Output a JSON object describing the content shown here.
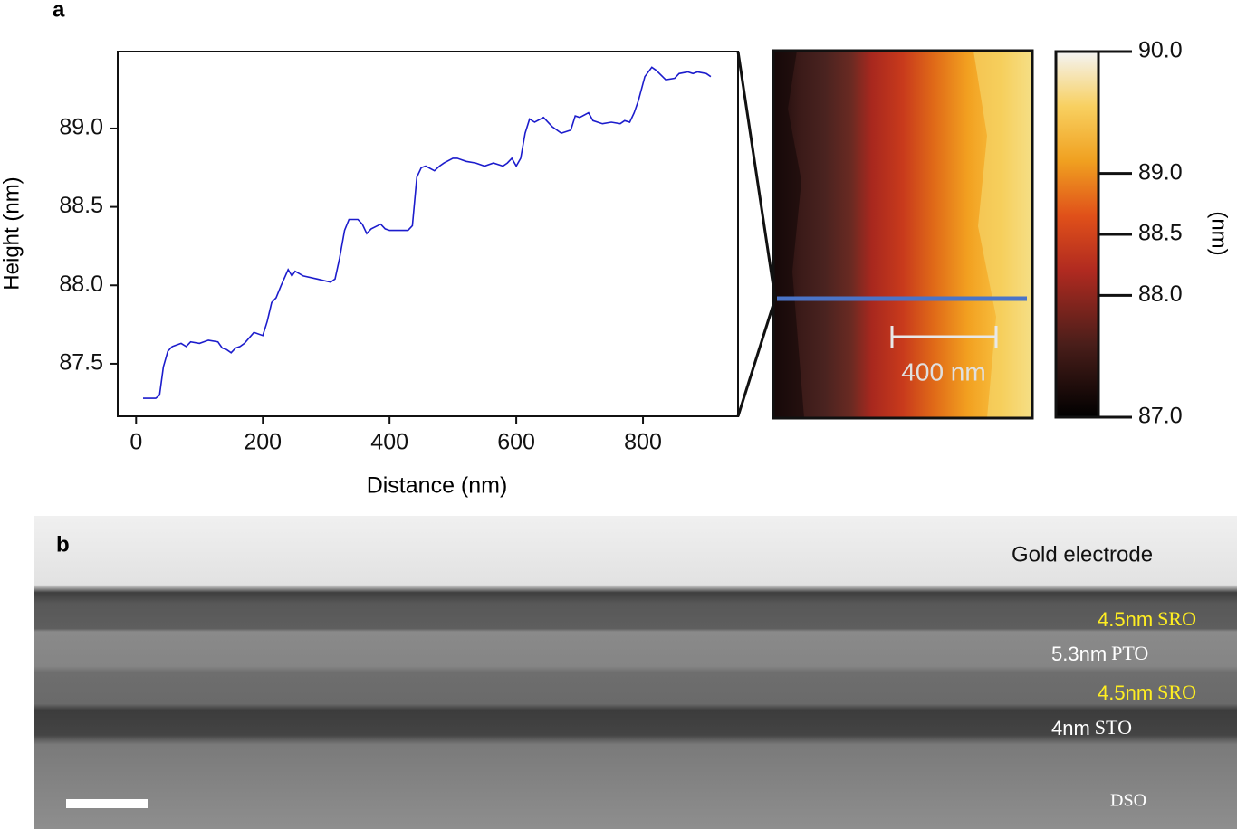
{
  "panel_labels": [
    "a",
    "b"
  ],
  "chart_data": {
    "type": "line",
    "xlabel": "Distance (nm)",
    "ylabel": "Height (nm)",
    "color": "#1c1ccc",
    "x": [
      11,
      31,
      37,
      43,
      50,
      57,
      71,
      79,
      86,
      100,
      114,
      129,
      136,
      143,
      150,
      157,
      164,
      171,
      186,
      200,
      207,
      214,
      221,
      229,
      240,
      246,
      251,
      264,
      286,
      307,
      314,
      321,
      329,
      336,
      350,
      357,
      364,
      371,
      386,
      393,
      400,
      414,
      429,
      436,
      443,
      450,
      457,
      471,
      479,
      486,
      500,
      507,
      514,
      521,
      536,
      550,
      564,
      579,
      586,
      593,
      600,
      607,
      614,
      621,
      629,
      643,
      657,
      671,
      686,
      693,
      700,
      714,
      721,
      736,
      750,
      764,
      771,
      779,
      786,
      793,
      803,
      814,
      821,
      836,
      850,
      857,
      871,
      879,
      886,
      900,
      907
    ],
    "values": [
      87.28,
      87.28,
      87.3,
      87.48,
      87.58,
      87.61,
      87.63,
      87.61,
      87.64,
      87.63,
      87.65,
      87.64,
      87.6,
      87.59,
      87.57,
      87.6,
      87.61,
      87.63,
      87.7,
      87.68,
      87.77,
      87.89,
      87.92,
      88.0,
      88.1,
      88.06,
      88.09,
      88.06,
      88.04,
      88.02,
      88.04,
      88.17,
      88.35,
      88.42,
      88.42,
      88.39,
      88.33,
      88.36,
      88.39,
      88.36,
      88.35,
      88.35,
      88.35,
      88.38,
      88.69,
      88.75,
      88.76,
      88.73,
      88.76,
      88.78,
      88.81,
      88.81,
      88.8,
      88.79,
      88.78,
      88.76,
      88.78,
      88.76,
      88.78,
      88.81,
      88.76,
      88.81,
      88.97,
      89.06,
      89.04,
      89.07,
      89.01,
      88.97,
      88.99,
      89.08,
      89.07,
      89.1,
      89.05,
      89.03,
      89.04,
      89.03,
      89.05,
      89.04,
      89.1,
      89.18,
      89.33,
      89.39,
      89.37,
      89.31,
      89.32,
      89.35,
      89.36,
      89.35,
      89.36,
      89.35,
      89.33
    ],
    "xlim": [
      -29,
      950
    ],
    "ylim": [
      87.165,
      89.49
    ],
    "xticks": [
      0,
      200,
      400,
      600,
      800
    ],
    "yticks": [
      {
        "value": 87.5,
        "label": "87.5"
      },
      {
        "value": 88.0,
        "label": "88.0"
      },
      {
        "value": 88.5,
        "label": "88.5"
      },
      {
        "value": 89.0,
        "label": "89.0"
      }
    ]
  },
  "afm_image": {
    "scale_bar": "400 nm",
    "colorbar": {
      "label": "(nm)",
      "lim": [
        87,
        90
      ],
      "ticks": [
        {
          "value": 87,
          "label": "87.0"
        },
        {
          "value": 88,
          "label": "88.0"
        },
        {
          "value": 88.5,
          "label": "88.5"
        },
        {
          "value": 89,
          "label": "89.0"
        },
        {
          "value": 90,
          "label": "90.0"
        }
      ]
    }
  },
  "tem_image": {
    "electrode": "Gold electrode",
    "layers": [
      {
        "thickness": "4.5nm",
        "material": "SRO"
      },
      {
        "thickness": "5.3nm",
        "material": "PTO"
      },
      {
        "thickness": "4.5nm",
        "material": "SRO"
      },
      {
        "thickness": "4nm",
        "material": "STO"
      }
    ],
    "substrate": "DSO"
  }
}
